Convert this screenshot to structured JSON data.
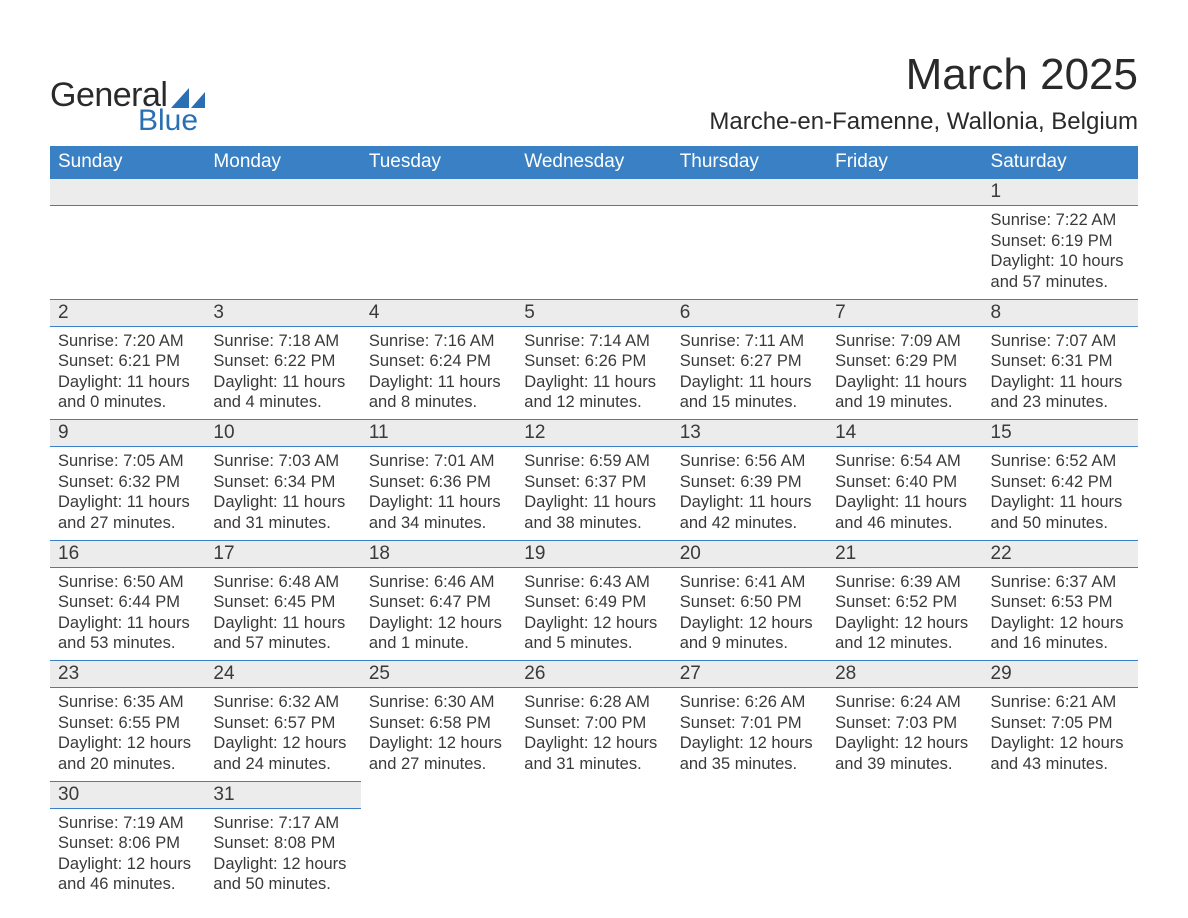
{
  "brand": {
    "word1": "General",
    "word2": "Blue",
    "color": "#2a6fb3"
  },
  "title": "March 2025",
  "location": "Marche-en-Famenne, Wallonia, Belgium",
  "dow_bg": "#3a80c4",
  "daynum_bg": "#ececec",
  "text_color": "#3a3a3a",
  "days_of_week": [
    "Sunday",
    "Monday",
    "Tuesday",
    "Wednesday",
    "Thursday",
    "Friday",
    "Saturday"
  ],
  "weeks": [
    [
      null,
      null,
      null,
      null,
      null,
      null,
      {
        "n": "1",
        "sr": "7:22 AM",
        "ss": "6:19 PM",
        "dl": "10 hours and 57 minutes."
      }
    ],
    [
      {
        "n": "2",
        "sr": "7:20 AM",
        "ss": "6:21 PM",
        "dl": "11 hours and 0 minutes."
      },
      {
        "n": "3",
        "sr": "7:18 AM",
        "ss": "6:22 PM",
        "dl": "11 hours and 4 minutes."
      },
      {
        "n": "4",
        "sr": "7:16 AM",
        "ss": "6:24 PM",
        "dl": "11 hours and 8 minutes."
      },
      {
        "n": "5",
        "sr": "7:14 AM",
        "ss": "6:26 PM",
        "dl": "11 hours and 12 minutes."
      },
      {
        "n": "6",
        "sr": "7:11 AM",
        "ss": "6:27 PM",
        "dl": "11 hours and 15 minutes."
      },
      {
        "n": "7",
        "sr": "7:09 AM",
        "ss": "6:29 PM",
        "dl": "11 hours and 19 minutes."
      },
      {
        "n": "8",
        "sr": "7:07 AM",
        "ss": "6:31 PM",
        "dl": "11 hours and 23 minutes."
      }
    ],
    [
      {
        "n": "9",
        "sr": "7:05 AM",
        "ss": "6:32 PM",
        "dl": "11 hours and 27 minutes."
      },
      {
        "n": "10",
        "sr": "7:03 AM",
        "ss": "6:34 PM",
        "dl": "11 hours and 31 minutes."
      },
      {
        "n": "11",
        "sr": "7:01 AM",
        "ss": "6:36 PM",
        "dl": "11 hours and 34 minutes."
      },
      {
        "n": "12",
        "sr": "6:59 AM",
        "ss": "6:37 PM",
        "dl": "11 hours and 38 minutes."
      },
      {
        "n": "13",
        "sr": "6:56 AM",
        "ss": "6:39 PM",
        "dl": "11 hours and 42 minutes."
      },
      {
        "n": "14",
        "sr": "6:54 AM",
        "ss": "6:40 PM",
        "dl": "11 hours and 46 minutes."
      },
      {
        "n": "15",
        "sr": "6:52 AM",
        "ss": "6:42 PM",
        "dl": "11 hours and 50 minutes."
      }
    ],
    [
      {
        "n": "16",
        "sr": "6:50 AM",
        "ss": "6:44 PM",
        "dl": "11 hours and 53 minutes."
      },
      {
        "n": "17",
        "sr": "6:48 AM",
        "ss": "6:45 PM",
        "dl": "11 hours and 57 minutes."
      },
      {
        "n": "18",
        "sr": "6:46 AM",
        "ss": "6:47 PM",
        "dl": "12 hours and 1 minute."
      },
      {
        "n": "19",
        "sr": "6:43 AM",
        "ss": "6:49 PM",
        "dl": "12 hours and 5 minutes."
      },
      {
        "n": "20",
        "sr": "6:41 AM",
        "ss": "6:50 PM",
        "dl": "12 hours and 9 minutes."
      },
      {
        "n": "21",
        "sr": "6:39 AM",
        "ss": "6:52 PM",
        "dl": "12 hours and 12 minutes."
      },
      {
        "n": "22",
        "sr": "6:37 AM",
        "ss": "6:53 PM",
        "dl": "12 hours and 16 minutes."
      }
    ],
    [
      {
        "n": "23",
        "sr": "6:35 AM",
        "ss": "6:55 PM",
        "dl": "12 hours and 20 minutes."
      },
      {
        "n": "24",
        "sr": "6:32 AM",
        "ss": "6:57 PM",
        "dl": "12 hours and 24 minutes."
      },
      {
        "n": "25",
        "sr": "6:30 AM",
        "ss": "6:58 PM",
        "dl": "12 hours and 27 minutes."
      },
      {
        "n": "26",
        "sr": "6:28 AM",
        "ss": "7:00 PM",
        "dl": "12 hours and 31 minutes."
      },
      {
        "n": "27",
        "sr": "6:26 AM",
        "ss": "7:01 PM",
        "dl": "12 hours and 35 minutes."
      },
      {
        "n": "28",
        "sr": "6:24 AM",
        "ss": "7:03 PM",
        "dl": "12 hours and 39 minutes."
      },
      {
        "n": "29",
        "sr": "6:21 AM",
        "ss": "7:05 PM",
        "dl": "12 hours and 43 minutes."
      }
    ],
    [
      {
        "n": "30",
        "sr": "7:19 AM",
        "ss": "8:06 PM",
        "dl": "12 hours and 46 minutes."
      },
      {
        "n": "31",
        "sr": "7:17 AM",
        "ss": "8:08 PM",
        "dl": "12 hours and 50 minutes."
      },
      null,
      null,
      null,
      null,
      null
    ]
  ],
  "labels": {
    "sunrise": "Sunrise: ",
    "sunset": "Sunset: ",
    "daylight": "Daylight: "
  }
}
